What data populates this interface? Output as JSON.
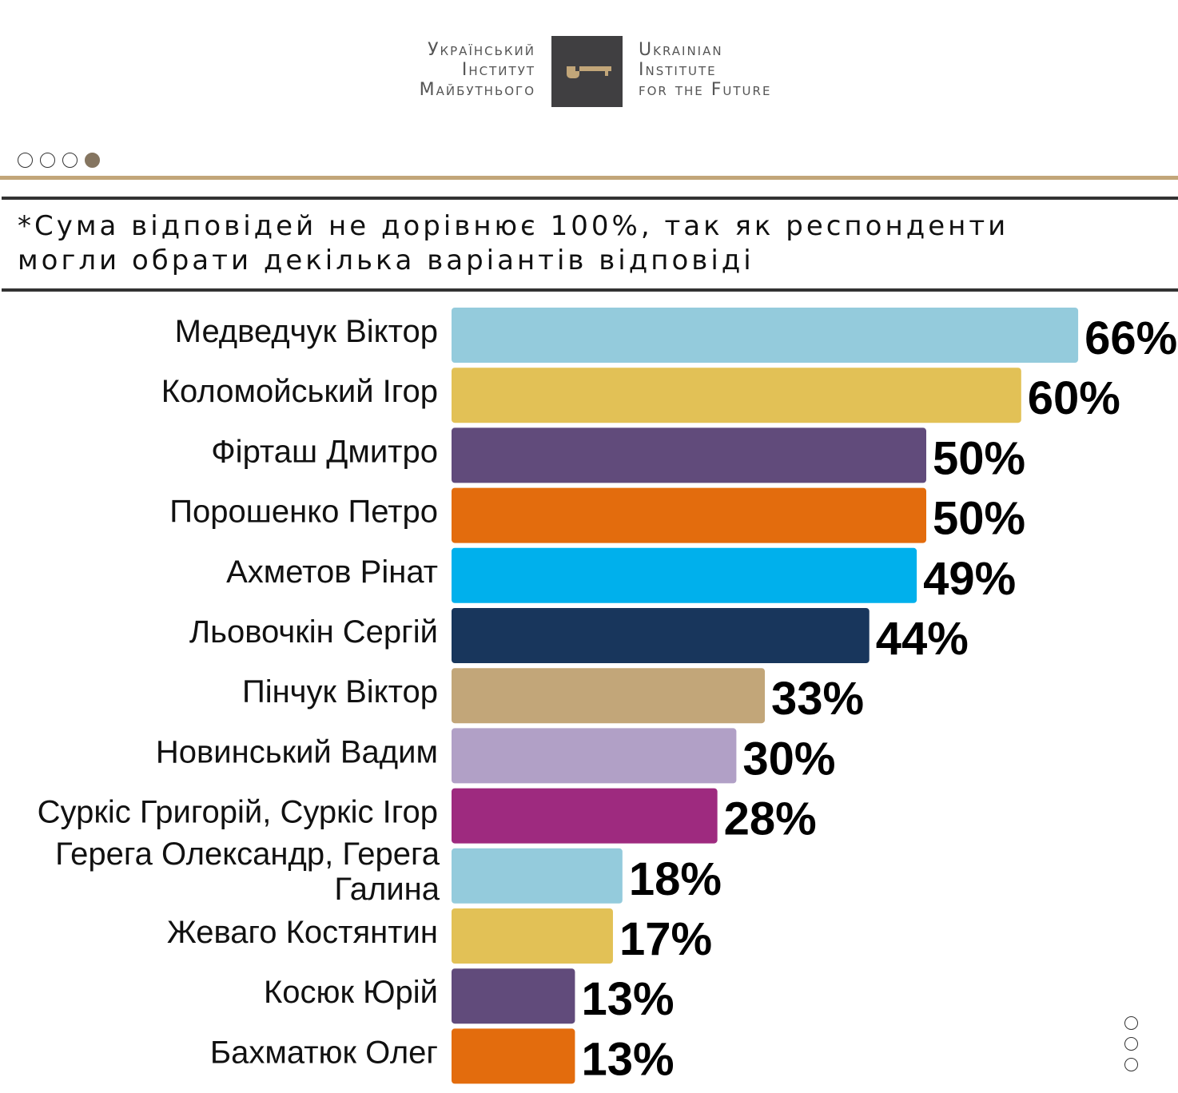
{
  "header": {
    "logo_uk": [
      "Український",
      "Інститут",
      "Майбутнього"
    ],
    "logo_en": [
      "Ukrainian",
      "Institute",
      "for the Future"
    ],
    "brand_color": "#c2a679"
  },
  "pager": {
    "total": 4,
    "active": 4
  },
  "note": "*Сума відповідей не дорівнює 100%, так як респонденти могли обрати декілька варіантів відповіді",
  "chart_data": {
    "type": "bar",
    "orientation": "horizontal",
    "categories": [
      "Медведчук Віктор",
      "Коломойський Ігор",
      "Фірташ Дмитро",
      "Порошенко Петро",
      "Ахметов Рінат",
      "Льовочкін Сергій",
      "Пінчук Віктор",
      "Новинський Вадим",
      "Суркіс Григорій, Суркіс Ігор",
      "Герега Олександр, Герега Галина",
      "Жеваго Костянтин",
      "Косюк Юрій",
      "Бахматюк Олег"
    ],
    "values": [
      66,
      60,
      50,
      50,
      49,
      44,
      33,
      30,
      28,
      18,
      17,
      13,
      13
    ],
    "value_labels": [
      "66%",
      "60%",
      "50%",
      "50%",
      "49%",
      "44%",
      "33%",
      "30%",
      "28%",
      "18%",
      "17%",
      "13%",
      "13%"
    ],
    "colors": [
      "#94cbdc",
      "#e2c156",
      "#614b7b",
      "#e36c0d",
      "#00b0ec",
      "#18365c",
      "#c2a679",
      "#b1a0c6",
      "#9e2a7f",
      "#94cbdc",
      "#e2c156",
      "#614b7b",
      "#e36c0d"
    ],
    "unit": "%",
    "grid": false,
    "legend": "none"
  }
}
